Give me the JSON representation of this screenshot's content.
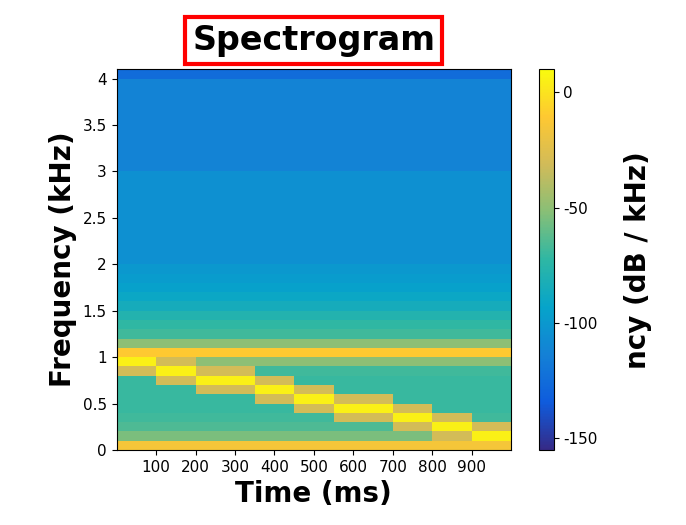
{
  "chart_data": {
    "type": "heatmap",
    "title": "Spectrogram",
    "x_label": "Time (ms)",
    "y_label": "Frequency (kHz)",
    "colorbar_label": "ncy (dB / kHz)",
    "xlim": [
      0,
      1000
    ],
    "ylim": [
      0,
      4.1
    ],
    "xticks": [
      100,
      200,
      300,
      400,
      500,
      600,
      700,
      800,
      900
    ],
    "yticks": [
      0,
      0.5,
      1,
      1.5,
      2,
      2.5,
      3,
      3.5,
      4
    ],
    "colorbar_lim": [
      -155,
      10
    ],
    "colorbar_ticks": [
      -150,
      -100,
      -50,
      0
    ],
    "time_edges": [
      0,
      50,
      100,
      150,
      200,
      250,
      300,
      350,
      400,
      450,
      500,
      550,
      600,
      650,
      700,
      750,
      800,
      850,
      900,
      950,
      1000
    ],
    "frequency_edges": [
      0,
      0.1,
      0.2,
      0.3,
      0.4,
      0.5,
      0.6,
      0.7,
      0.8,
      0.9,
      1.0,
      1.1,
      1.2,
      1.3,
      1.4,
      1.5,
      1.6,
      1.7,
      1.8,
      1.9,
      2.0,
      2.1,
      2.2,
      2.3,
      2.4,
      2.5,
      2.6,
      2.7,
      2.8,
      2.9,
      3.0,
      3.1,
      3.2,
      3.3,
      3.4,
      3.5,
      3.6,
      3.7,
      3.8,
      3.9,
      4.0,
      4.1
    ],
    "cells": [
      [
        -15,
        -15,
        -15,
        -15,
        -15,
        -15,
        -15,
        -15,
        -15,
        -15,
        -15,
        -15,
        -15,
        -15,
        -15,
        -15,
        -15,
        -15,
        -15,
        -15
      ],
      [
        -55,
        -55,
        -55,
        -55,
        -55,
        -55,
        -55,
        -55,
        -55,
        -55,
        -55,
        -55,
        -55,
        -55,
        -55,
        -55,
        -30,
        -30,
        5,
        5
      ],
      [
        -65,
        -65,
        -65,
        -65,
        -65,
        -65,
        -65,
        -65,
        -65,
        -65,
        -65,
        -65,
        -65,
        -65,
        -30,
        -30,
        5,
        5,
        -30,
        -30
      ],
      [
        -68,
        -68,
        -68,
        -68,
        -68,
        -68,
        -68,
        -68,
        -68,
        -68,
        -68,
        -30,
        -30,
        -30,
        5,
        5,
        -30,
        -30,
        -68,
        -68
      ],
      [
        -70,
        -70,
        -70,
        -70,
        -70,
        -70,
        -70,
        -70,
        -70,
        -30,
        -30,
        5,
        5,
        5,
        -30,
        -30,
        -70,
        -70,
        -70,
        -70
      ],
      [
        -70,
        -70,
        -70,
        -70,
        -70,
        -70,
        -70,
        -30,
        -30,
        5,
        5,
        -30,
        -30,
        -30,
        -70,
        -70,
        -70,
        -70,
        -70,
        -70
      ],
      [
        -70,
        -70,
        -70,
        -70,
        -30,
        -30,
        -30,
        5,
        5,
        -30,
        -30,
        -70,
        -70,
        -70,
        -70,
        -70,
        -70,
        -70,
        -70,
        -70
      ],
      [
        -70,
        -70,
        -30,
        -30,
        5,
        5,
        5,
        -30,
        -30,
        -70,
        -70,
        -70,
        -70,
        -70,
        -70,
        -70,
        -70,
        -70,
        -70,
        -70
      ],
      [
        -30,
        -30,
        5,
        5,
        -30,
        -30,
        -30,
        -68,
        -68,
        -68,
        -68,
        -68,
        -68,
        -68,
        -68,
        -68,
        -68,
        -68,
        -68,
        -68
      ],
      [
        5,
        5,
        -30,
        -30,
        -50,
        -50,
        -50,
        -50,
        -50,
        -50,
        -50,
        -50,
        -50,
        -50,
        -50,
        -50,
        -50,
        -50,
        -50,
        -50
      ],
      [
        -10,
        -10,
        -10,
        -10,
        -10,
        -10,
        -10,
        -10,
        -10,
        -10,
        -10,
        -10,
        -10,
        -10,
        -10,
        -10,
        -10,
        -10,
        -10,
        -10
      ],
      [
        -50,
        -50,
        -50,
        -50,
        -50,
        -50,
        -50,
        -50,
        -50,
        -50,
        -50,
        -50,
        -50,
        -50,
        -50,
        -50,
        -50,
        -50,
        -50,
        -50
      ],
      [
        -68,
        -68,
        -68,
        -68,
        -68,
        -68,
        -68,
        -68,
        -68,
        -68,
        -68,
        -68,
        -68,
        -68,
        -68,
        -68,
        -68,
        -68,
        -68,
        -68
      ],
      [
        -72,
        -72,
        -72,
        -72,
        -72,
        -72,
        -72,
        -72,
        -72,
        -72,
        -72,
        -72,
        -72,
        -72,
        -72,
        -72,
        -72,
        -72,
        -72,
        -72
      ],
      [
        -78,
        -78,
        -78,
        -78,
        -78,
        -78,
        -78,
        -78,
        -78,
        -78,
        -78,
        -78,
        -78,
        -78,
        -78,
        -78,
        -78,
        -78,
        -78,
        -78
      ],
      [
        -85,
        -85,
        -85,
        -85,
        -85,
        -85,
        -85,
        -85,
        -85,
        -85,
        -85,
        -85,
        -85,
        -85,
        -85,
        -85,
        -85,
        -85,
        -85,
        -85
      ],
      [
        -90,
        -90,
        -90,
        -90,
        -90,
        -90,
        -90,
        -90,
        -90,
        -90,
        -90,
        -90,
        -90,
        -90,
        -90,
        -90,
        -90,
        -90,
        -90,
        -90
      ],
      [
        -95,
        -95,
        -95,
        -95,
        -95,
        -95,
        -95,
        -95,
        -95,
        -95,
        -95,
        -95,
        -95,
        -95,
        -95,
        -95,
        -95,
        -95,
        -95,
        -95
      ],
      [
        -98,
        -98,
        -98,
        -98,
        -98,
        -98,
        -98,
        -98,
        -98,
        -98,
        -98,
        -98,
        -98,
        -98,
        -98,
        -98,
        -98,
        -98,
        -98,
        -98
      ],
      [
        -100,
        -100,
        -100,
        -100,
        -100,
        -100,
        -100,
        -100,
        -100,
        -100,
        -100,
        -100,
        -100,
        -100,
        -100,
        -100,
        -100,
        -100,
        -100,
        -100
      ],
      [
        -105,
        -105,
        -105,
        -105,
        -105,
        -105,
        -105,
        -105,
        -105,
        -105,
        -105,
        -105,
        -105,
        -105,
        -105,
        -105,
        -105,
        -105,
        -105,
        -105
      ],
      [
        -105,
        -105,
        -105,
        -105,
        -105,
        -105,
        -105,
        -105,
        -105,
        -105,
        -105,
        -105,
        -105,
        -105,
        -105,
        -105,
        -105,
        -105,
        -105,
        -105
      ],
      [
        -105,
        -105,
        -105,
        -105,
        -105,
        -105,
        -105,
        -105,
        -105,
        -105,
        -105,
        -105,
        -105,
        -105,
        -105,
        -105,
        -105,
        -105,
        -105,
        -105
      ],
      [
        -105,
        -105,
        -105,
        -105,
        -105,
        -105,
        -105,
        -105,
        -105,
        -105,
        -105,
        -105,
        -105,
        -105,
        -105,
        -105,
        -105,
        -105,
        -105,
        -105
      ],
      [
        -105,
        -105,
        -105,
        -105,
        -105,
        -105,
        -105,
        -105,
        -105,
        -105,
        -105,
        -105,
        -105,
        -105,
        -105,
        -105,
        -105,
        -105,
        -105,
        -105
      ],
      [
        -105,
        -105,
        -105,
        -105,
        -105,
        -105,
        -105,
        -105,
        -105,
        -105,
        -105,
        -105,
        -105,
        -105,
        -105,
        -105,
        -105,
        -105,
        -105,
        -105
      ],
      [
        -105,
        -105,
        -105,
        -105,
        -105,
        -105,
        -105,
        -105,
        -105,
        -105,
        -105,
        -105,
        -105,
        -105,
        -105,
        -105,
        -105,
        -105,
        -105,
        -105
      ],
      [
        -105,
        -105,
        -105,
        -105,
        -105,
        -105,
        -105,
        -105,
        -105,
        -105,
        -105,
        -105,
        -105,
        -105,
        -105,
        -105,
        -105,
        -105,
        -105,
        -105
      ],
      [
        -105,
        -105,
        -105,
        -105,
        -105,
        -105,
        -105,
        -105,
        -105,
        -105,
        -105,
        -105,
        -105,
        -105,
        -105,
        -105,
        -105,
        -105,
        -105,
        -105
      ],
      [
        -105,
        -105,
        -105,
        -105,
        -105,
        -105,
        -105,
        -105,
        -105,
        -105,
        -105,
        -105,
        -105,
        -105,
        -105,
        -105,
        -105,
        -105,
        -105,
        -105
      ],
      [
        -112,
        -112,
        -112,
        -112,
        -112,
        -112,
        -112,
        -112,
        -112,
        -112,
        -112,
        -112,
        -112,
        -112,
        -112,
        -112,
        -112,
        -112,
        -112,
        -112
      ],
      [
        -112,
        -112,
        -112,
        -112,
        -112,
        -112,
        -112,
        -112,
        -112,
        -112,
        -112,
        -112,
        -112,
        -112,
        -112,
        -112,
        -112,
        -112,
        -112,
        -112
      ],
      [
        -112,
        -112,
        -112,
        -112,
        -112,
        -112,
        -112,
        -112,
        -112,
        -112,
        -112,
        -112,
        -112,
        -112,
        -112,
        -112,
        -112,
        -112,
        -112,
        -112
      ],
      [
        -112,
        -112,
        -112,
        -112,
        -112,
        -112,
        -112,
        -112,
        -112,
        -112,
        -112,
        -112,
        -112,
        -112,
        -112,
        -112,
        -112,
        -112,
        -112,
        -112
      ],
      [
        -112,
        -112,
        -112,
        -112,
        -112,
        -112,
        -112,
        -112,
        -112,
        -112,
        -112,
        -112,
        -112,
        -112,
        -112,
        -112,
        -112,
        -112,
        -112,
        -112
      ],
      [
        -112,
        -112,
        -112,
        -112,
        -112,
        -112,
        -112,
        -112,
        -112,
        -112,
        -112,
        -112,
        -112,
        -112,
        -112,
        -112,
        -112,
        -112,
        -112,
        -112
      ],
      [
        -112,
        -112,
        -112,
        -112,
        -112,
        -112,
        -112,
        -112,
        -112,
        -112,
        -112,
        -112,
        -112,
        -112,
        -112,
        -112,
        -112,
        -112,
        -112,
        -112
      ],
      [
        -112,
        -112,
        -112,
        -112,
        -112,
        -112,
        -112,
        -112,
        -112,
        -112,
        -112,
        -112,
        -112,
        -112,
        -112,
        -112,
        -112,
        -112,
        -112,
        -112
      ],
      [
        -112,
        -112,
        -112,
        -112,
        -112,
        -112,
        -112,
        -112,
        -112,
        -112,
        -112,
        -112,
        -112,
        -112,
        -112,
        -112,
        -112,
        -112,
        -112,
        -112
      ],
      [
        -112,
        -112,
        -112,
        -112,
        -112,
        -112,
        -112,
        -112,
        -112,
        -112,
        -112,
        -112,
        -112,
        -112,
        -112,
        -112,
        -112,
        -112,
        -112,
        -112
      ],
      [
        -125,
        -125,
        -125,
        -125,
        -125,
        -125,
        -125,
        -125,
        -125,
        -125,
        -125,
        -125,
        -125,
        -125,
        -125,
        -125,
        -125,
        -125,
        -125,
        -125
      ]
    ]
  }
}
